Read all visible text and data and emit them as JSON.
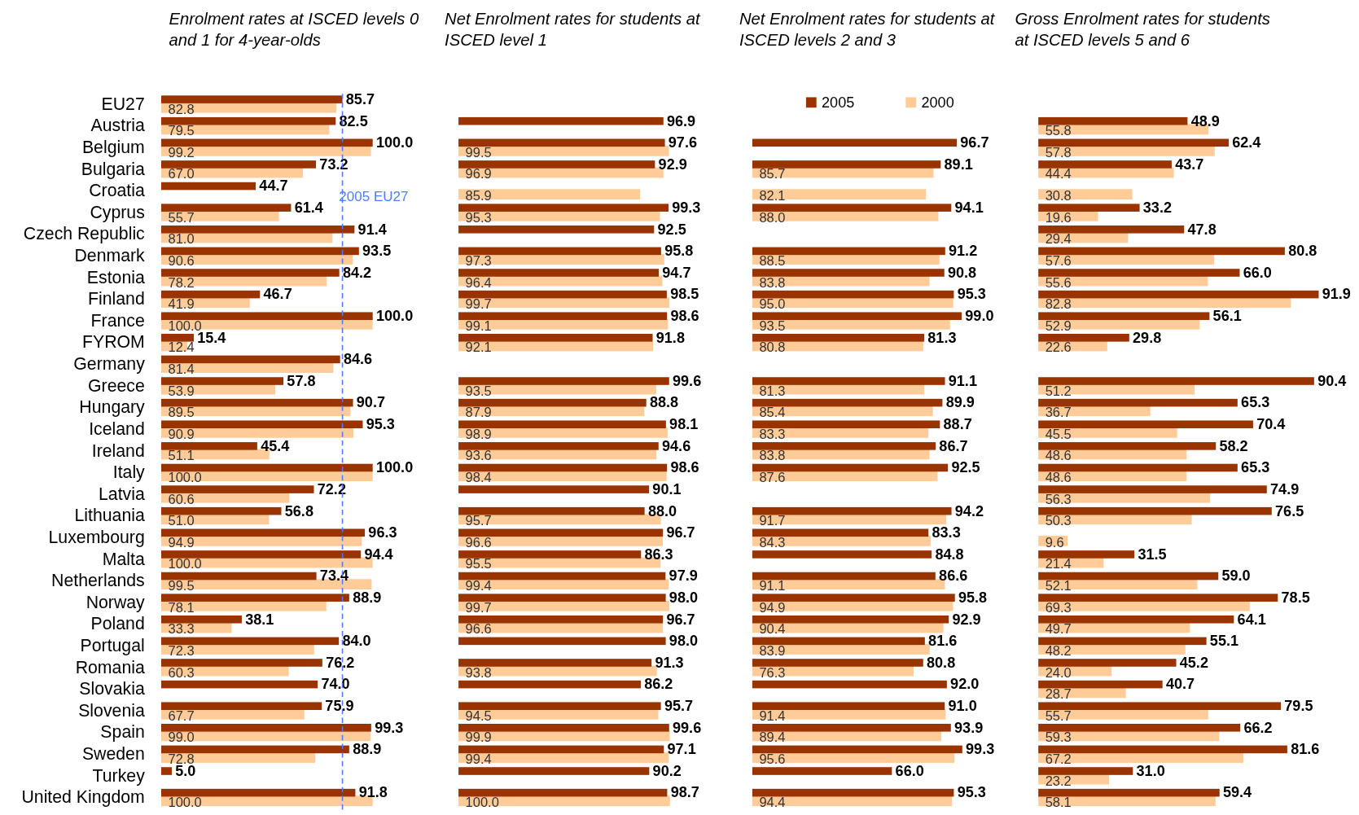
{
  "chart_data": [
    {
      "type": "bar",
      "orientation": "horizontal",
      "title": "Enrolment rates at ISCED levels 0 and 1 for 4-year-olds",
      "categories": [
        "EU27",
        "Austria",
        "Belgium",
        "Bulgaria",
        "Croatia",
        "Cyprus",
        "Czech Republic",
        "Denmark",
        "Estonia",
        "Finland",
        "France",
        "FYROM",
        "Germany",
        "Greece",
        "Hungary",
        "Iceland",
        "Ireland",
        "Italy",
        "Latvia",
        "Lithuania",
        "Luxembourg",
        "Malta",
        "Netherlands",
        "Norway",
        "Poland",
        "Portugal",
        "Romania",
        "Slovakia",
        "Slovenia",
        "Spain",
        "Sweden",
        "Turkey",
        "United Kingdom"
      ],
      "tick_labels": "y",
      "series": [
        {
          "color": "#ffcc99",
          "values": [
            82.8,
            79.5,
            99.2,
            67.0,
            null,
            55.7,
            81.0,
            90.6,
            78.2,
            41.9,
            100.0,
            12.4,
            81.4,
            53.9,
            89.5,
            90.9,
            51.1,
            100.0,
            60.6,
            51.0,
            94.9,
            100.0,
            99.5,
            78.1,
            33.3,
            72.3,
            60.3,
            null,
            67.7,
            99.0,
            72.8,
            null,
            100.0
          ],
          "value_labels": [
            "82.8",
            "79.5",
            "99.2",
            "67.0",
            null,
            "55.7",
            "81.0",
            "90.6",
            "78.2",
            "41.9",
            "100.0",
            "12.4",
            "81.4",
            "53.9",
            "89.5",
            "90.9",
            "51.1",
            "100.0",
            "60.6",
            "51.0",
            "94.9",
            "100.0",
            "99.5",
            "78.1",
            "33.3",
            "72.3",
            "60.3",
            null,
            "67.7",
            "99.0",
            "72.8",
            null,
            "100.0"
          ]
        },
        {
          "color": "#993300",
          "values": [
            85.7,
            82.5,
            100.0,
            73.2,
            44.7,
            61.4,
            91.4,
            93.5,
            84.2,
            46.7,
            100.0,
            15.4,
            84.6,
            57.8,
            90.7,
            95.3,
            45.4,
            100.0,
            72.2,
            56.8,
            96.3,
            94.4,
            73.4,
            88.9,
            38.1,
            84.0,
            76.2,
            74.0,
            75.9,
            99.3,
            88.9,
            5.0,
            91.8
          ],
          "value_labels": [
            "85.7",
            "82.5",
            "100.0",
            "73.2",
            "44.7",
            "61.4",
            "91.4",
            "93.5",
            "84.2",
            "46.7",
            "100.0",
            "15.4",
            "84.6",
            "57.8",
            "90.7",
            "95.3",
            "45.4",
            "100.0",
            "72.2",
            "56.8",
            "96.3",
            "94.4",
            "73.4",
            "88.9",
            "38.1",
            "84.0",
            "76.2",
            "74.0",
            "75.9",
            "99.3",
            "88.9",
            "5.0",
            "91.8"
          ]
        }
      ],
      "ref_lines": [
        {
          "axis": "x",
          "value": 85.7,
          "label": "2005 EU27",
          "color": "#4d7cff",
          "line_style": "dashed"
        }
      ]
    },
    {
      "type": "bar",
      "orientation": "horizontal",
      "title": "Net Enrolment rates for students at ISCED level 1",
      "categories": [
        null,
        null,
        null,
        null,
        null,
        null,
        null,
        null,
        null,
        null,
        null,
        null,
        null,
        null,
        null,
        null,
        null,
        null,
        null,
        null,
        null,
        null,
        null,
        null,
        null,
        null,
        null,
        null,
        null,
        null,
        null,
        null,
        null
      ],
      "tick_labels": false,
      "series": [
        {
          "color": "#ffcc99",
          "values": [
            null,
            null,
            99.5,
            96.9,
            85.9,
            95.3,
            null,
            97.3,
            96.4,
            99.7,
            99.1,
            92.1,
            null,
            93.5,
            87.9,
            98.9,
            93.6,
            98.4,
            null,
            95.7,
            96.6,
            95.5,
            99.4,
            99.7,
            96.6,
            null,
            93.8,
            null,
            94.5,
            99.9,
            99.4,
            null,
            100.0
          ],
          "value_labels": [
            null,
            null,
            "99.5",
            "96.9",
            "85.9",
            "95.3",
            null,
            "97.3",
            "96.4",
            "99.7",
            "99.1",
            "92.1",
            null,
            "93.5",
            "87.9",
            "98.9",
            "93.6",
            "98.4",
            null,
            "95.7",
            "96.6",
            "95.5",
            "99.4",
            "99.7",
            "96.6",
            null,
            "93.8",
            null,
            "94.5",
            "99.9",
            "99.4",
            null,
            "100.0"
          ]
        },
        {
          "color": "#993300",
          "values": [
            null,
            96.9,
            97.6,
            92.9,
            null,
            99.3,
            92.5,
            95.8,
            94.7,
            98.5,
            98.6,
            91.8,
            null,
            99.6,
            88.8,
            98.1,
            94.6,
            98.6,
            90.1,
            88.0,
            96.7,
            86.3,
            97.9,
            98.0,
            96.7,
            98.0,
            91.3,
            86.2,
            95.7,
            99.6,
            97.1,
            90.2,
            98.7
          ],
          "value_labels": [
            null,
            "96.9",
            "97.6",
            "92.9",
            null,
            "99.3",
            "92.5",
            "95.8",
            "94.7",
            "98.5",
            "98.6",
            "91.8",
            null,
            "99.6",
            "88.8",
            "98.1",
            "94.6",
            "98.6",
            "90.1",
            "88.0",
            "96.7",
            "86.3",
            "97.9",
            "98.0",
            "96.7",
            "98.0",
            "91.3",
            "86.2",
            "95.7",
            "99.6",
            "97.1",
            "90.2",
            "98.7"
          ]
        }
      ]
    },
    {
      "type": "bar",
      "orientation": "horizontal",
      "title": "Net Enrolment rates for students at ISCED levels 2 and 3",
      "categories": [
        null,
        null,
        null,
        null,
        null,
        null,
        null,
        null,
        null,
        null,
        null,
        null,
        null,
        null,
        null,
        null,
        null,
        null,
        null,
        null,
        null,
        null,
        null,
        null,
        null,
        null,
        null,
        null,
        null,
        null,
        null,
        null,
        null
      ],
      "tick_labels": false,
      "legend": "top",
      "series": [
        {
          "name": "2000",
          "color": "#ffcc99",
          "values": [
            null,
            null,
            null,
            85.7,
            82.1,
            88.0,
            null,
            88.5,
            83.8,
            95.0,
            93.5,
            80.8,
            null,
            81.3,
            85.4,
            83.3,
            83.8,
            87.6,
            null,
            91.7,
            84.3,
            null,
            91.1,
            94.9,
            90.4,
            83.9,
            76.3,
            null,
            91.4,
            89.4,
            95.6,
            null,
            94.4
          ],
          "value_labels": [
            null,
            null,
            null,
            "85.7",
            "82.1",
            "88.0",
            null,
            "88.5",
            "83.8",
            "95.0",
            "93.5",
            "80.8",
            null,
            "81.3",
            "85.4",
            "83.3",
            "83.8",
            "87.6",
            null,
            "91.7",
            "84.3",
            null,
            "91.1",
            "94.9",
            "90.4",
            "83.9",
            "76.3",
            null,
            "91.4",
            "89.4",
            "95.6",
            null,
            "94.4"
          ]
        },
        {
          "name": "2005",
          "color": "#993300",
          "values": [
            null,
            null,
            96.7,
            89.1,
            null,
            94.1,
            null,
            91.2,
            90.8,
            95.3,
            99.0,
            81.3,
            null,
            91.1,
            89.9,
            88.7,
            86.7,
            92.5,
            null,
            94.2,
            83.3,
            84.8,
            86.6,
            95.8,
            92.9,
            81.6,
            80.8,
            92.0,
            91.0,
            93.9,
            99.3,
            66.0,
            95.3
          ],
          "value_labels": [
            null,
            null,
            "96.7",
            "89.1",
            null,
            "94.1",
            null,
            "91.2",
            "90.8",
            "95.3",
            "99.0",
            "81.3",
            null,
            "91.1",
            "89.9",
            "88.7",
            "86.7",
            "92.5",
            null,
            "94.2",
            "83.3",
            "84.8",
            "86.6",
            "95.8",
            "92.9",
            "81.6",
            "80.8",
            "92.0",
            "91.0",
            "93.9",
            "99.3",
            "66.0",
            "95.3"
          ]
        }
      ]
    },
    {
      "type": "bar",
      "orientation": "horizontal",
      "title": "Gross Enrolment rates for students at ISCED levels 5 and 6",
      "categories": [
        null,
        null,
        null,
        null,
        null,
        null,
        null,
        null,
        null,
        null,
        null,
        null,
        null,
        null,
        null,
        null,
        null,
        null,
        null,
        null,
        null,
        null,
        null,
        null,
        null,
        null,
        null,
        null,
        null,
        null,
        null,
        null,
        null
      ],
      "tick_labels": false,
      "series": [
        {
          "color": "#ffcc99",
          "values": [
            null,
            55.8,
            57.8,
            44.4,
            30.8,
            19.6,
            29.4,
            57.6,
            55.6,
            82.8,
            52.9,
            22.6,
            null,
            51.2,
            36.7,
            45.5,
            48.6,
            48.6,
            56.3,
            50.3,
            9.6,
            21.4,
            52.1,
            69.3,
            49.7,
            48.2,
            24.0,
            28.7,
            55.7,
            59.3,
            67.2,
            23.2,
            58.1
          ],
          "value_labels": [
            null,
            "55.8",
            "57.8",
            "44.4",
            "30.8",
            "19.6",
            "29.4",
            "57.6",
            "55.6",
            "82.8",
            "52.9",
            "22.6",
            null,
            "51.2",
            "36.7",
            "45.5",
            "48.6",
            "48.6",
            "56.3",
            "50.3",
            "9.6",
            "21.4",
            "52.1",
            "69.3",
            "49.7",
            "48.2",
            "24.0",
            "28.7",
            "55.7",
            "59.3",
            "67.2",
            "23.2",
            "58.1"
          ]
        },
        {
          "color": "#993300",
          "values": [
            null,
            48.9,
            62.4,
            43.7,
            null,
            33.2,
            47.8,
            80.8,
            66.0,
            91.9,
            56.1,
            29.8,
            null,
            90.4,
            65.3,
            70.4,
            58.2,
            65.3,
            74.9,
            76.5,
            null,
            31.5,
            59.0,
            78.5,
            64.1,
            55.1,
            45.2,
            40.7,
            79.5,
            66.2,
            81.6,
            31.0,
            59.4
          ],
          "value_labels": [
            null,
            "48.9",
            "62.4",
            "43.7",
            null,
            "33.2",
            "47.8",
            "80.8",
            "66.0",
            "91.9",
            "56.1",
            "29.8",
            null,
            "90.4",
            "65.3",
            "70.4",
            "58.2",
            "65.3",
            "74.9",
            "76.5",
            null,
            "31.5",
            "59.0",
            "78.5",
            "64.1",
            "55.1",
            "45.2",
            "40.7",
            "79.5",
            "66.2",
            "81.6",
            "31.0",
            "59.4"
          ]
        }
      ]
    }
  ]
}
